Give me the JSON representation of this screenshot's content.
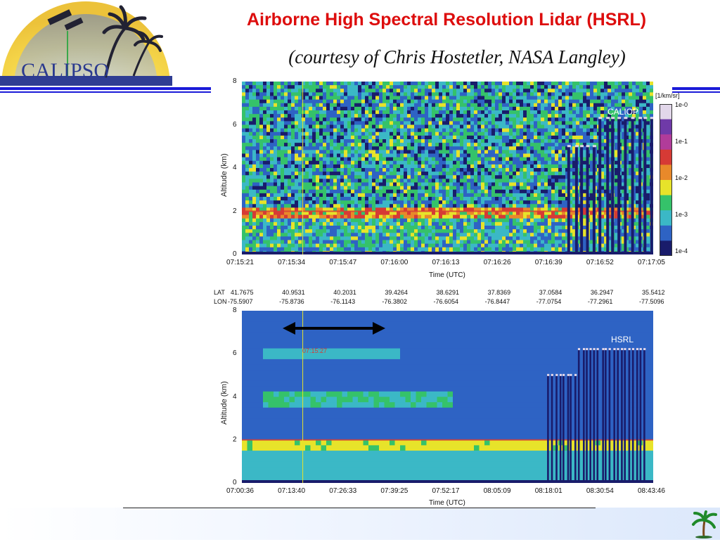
{
  "slide": {
    "title": "Airborne High Spectral Resolution Lidar (HSRL)",
    "subtitle": "(courtesy of Chris Hostetler, NASA Langley)",
    "logo_text": "CALIPSO",
    "colors": {
      "title": "#dd0d0d",
      "rule": "#1a1ad8"
    }
  },
  "chart_data": [
    {
      "type": "heatmap",
      "instrument_label": "CALIOP",
      "ylabel": "Altitude (km)",
      "xlabel": "Time (UTC)",
      "ylim": [
        0,
        8
      ],
      "y_ticks": [
        "0",
        "2",
        "4",
        "6",
        "8"
      ],
      "x_ticks": [
        "07:15:21",
        "07:15:34",
        "07:15:47",
        "07:16:00",
        "07:16:13",
        "07:16:26",
        "07:16:39",
        "07:16:52",
        "07:17:05"
      ],
      "colorbar": {
        "title": "[1/km/sr]",
        "ticks": [
          "1e-0",
          "1e-1",
          "1e-2",
          "1e-3",
          "1e-4"
        ],
        "colors": [
          "#191c6b",
          "#2e63c4",
          "#3bb8c6",
          "#35c26a",
          "#e7e32a",
          "#e8892a",
          "#d63a35",
          "#b13c9a",
          "#6f3aa8",
          "#e2d7ea"
        ]
      },
      "features": {
        "boundary_layer_top_km": 2.0,
        "cirrus_top_km": 6.3
      },
      "lat_lon_table": {
        "lat_label": "LAT",
        "lon_label": "LON",
        "lat": [
          "41.7675",
          "40.9531",
          "40.2031",
          "39.4264",
          "38.6291",
          "37.8369",
          "37.0584",
          "36.2947",
          "35.5412"
        ],
        "lon": [
          "-75.5907",
          "-75.8736",
          "-76.1143",
          "-76.3802",
          "-76.6054",
          "-76.8447",
          "-77.0754",
          "-77.2961",
          "-77.5096"
        ]
      }
    },
    {
      "type": "heatmap",
      "instrument_label": "HSRL",
      "ylabel": "Altitude (km)",
      "xlabel": "Time (UTC)",
      "ylim": [
        0,
        8
      ],
      "y_ticks": [
        "0",
        "2",
        "4",
        "6",
        "8"
      ],
      "x_ticks": [
        "07:00:36",
        "07:13:40",
        "07:26:33",
        "07:39:25",
        "07:52:17",
        "08:05:09",
        "08:18:01",
        "08:30:54",
        "08:43:46"
      ],
      "annotation": "07:15:27",
      "features": {
        "boundary_layer_top_km": 2.0,
        "cirrus_top_km": 6.2
      }
    }
  ]
}
